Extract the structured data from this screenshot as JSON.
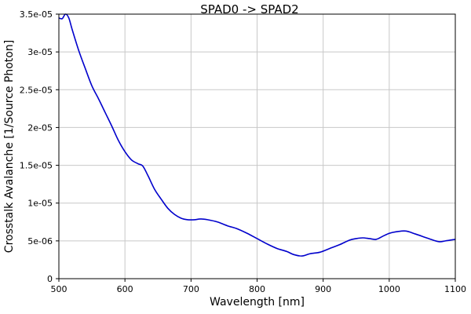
{
  "chart_data": {
    "type": "line",
    "title": "SPAD0 -> SPAD2",
    "xlabel": "Wavelength [nm]",
    "ylabel": "Crosstalk Avalanche [1/Source Photon]",
    "xlim": [
      500,
      1100
    ],
    "ylim": [
      0,
      3.5e-05
    ],
    "xticks": [
      500,
      600,
      700,
      800,
      900,
      1000,
      1100
    ],
    "xtick_labels": [
      "500",
      "600",
      "700",
      "800",
      "900",
      "1000",
      "1100"
    ],
    "yticks": [
      0,
      5e-06,
      1e-05,
      1.5e-05,
      2e-05,
      2.5e-05,
      3e-05,
      3.5e-05
    ],
    "ytick_labels": [
      "0",
      "5e-06",
      "1e-05",
      "1.5e-05",
      "2e-05",
      "2.5e-05",
      "3e-05",
      "3.5e-05"
    ],
    "grid": true,
    "color": "#0000cc",
    "series": [
      {
        "x": [
          500,
          505,
          510,
          515,
          520,
          530,
          540,
          550,
          560,
          570,
          580,
          590,
          600,
          610,
          620,
          627,
          635,
          645,
          655,
          665,
          675,
          685,
          695,
          705,
          715,
          725,
          740,
          755,
          770,
          785,
          800,
          815,
          830,
          845,
          855,
          868,
          880,
          895,
          910,
          925,
          940,
          950,
          960,
          970,
          980,
          990,
          1000,
          1010,
          1025,
          1040,
          1060,
          1075,
          1085,
          1100
        ],
        "y": [
          3.45e-05,
          3.44e-05,
          3.5e-05,
          3.45e-05,
          3.3e-05,
          3.02e-05,
          2.78e-05,
          2.55e-05,
          2.38e-05,
          2.2e-05,
          2.02e-05,
          1.83e-05,
          1.68e-05,
          1.57e-05,
          1.52e-05,
          1.49e-05,
          1.36e-05,
          1.18e-05,
          1.05e-05,
          9.3e-06,
          8.5e-06,
          8e-06,
          7.8e-06,
          7.8e-06,
          7.9e-06,
          7.8e-06,
          7.5e-06,
          7e-06,
          6.6e-06,
          6e-06,
          5.3e-06,
          4.6e-06,
          4e-06,
          3.6e-06,
          3.2e-06,
          3e-06,
          3.3e-06,
          3.5e-06,
          4e-06,
          4.5e-06,
          5.1e-06,
          5.3e-06,
          5.4e-06,
          5.3e-06,
          5.2e-06,
          5.6e-06,
          6e-06,
          6.2e-06,
          6.3e-06,
          5.9e-06,
          5.3e-06,
          4.9e-06,
          5e-06,
          5.2e-06
        ]
      }
    ]
  }
}
